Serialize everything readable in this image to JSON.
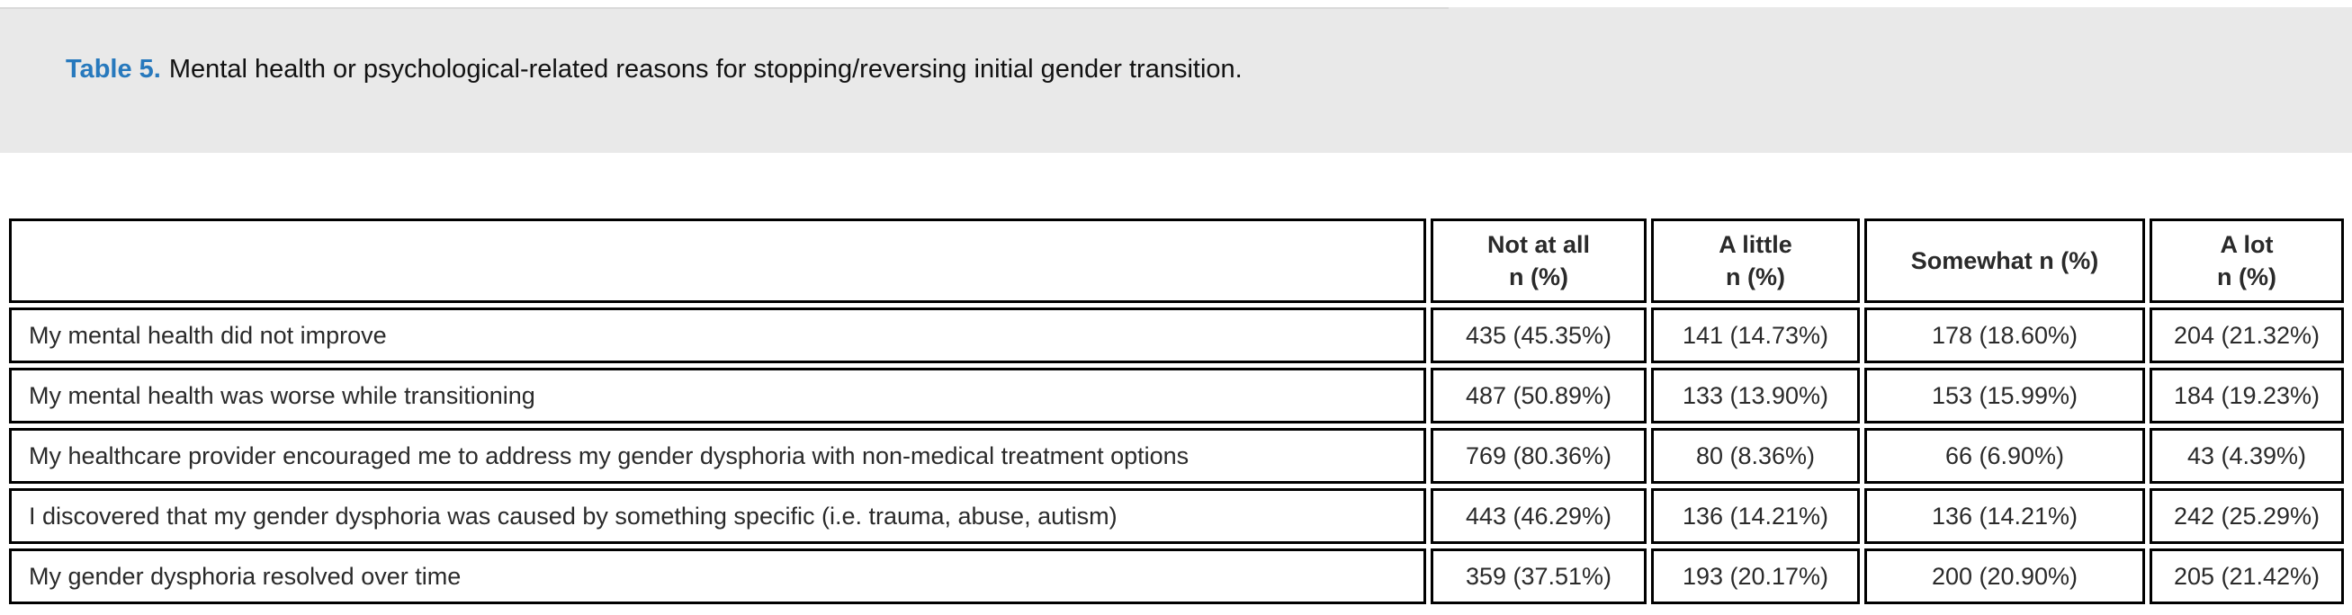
{
  "colors": {
    "caption_bar_background": "#e9e9e9",
    "caption_label_blue": "#2779bd",
    "table_border": "#000000",
    "text": "#2a2a2a"
  },
  "caption_bar": {
    "label": "Table 5.",
    "text": "Mental health or psychological-related reasons for stopping/reversing initial gender transition."
  },
  "table": {
    "columns": [
      {
        "line1": "Not at all",
        "line2": "n (%)"
      },
      {
        "line1": "A little",
        "line2": "n (%)"
      },
      {
        "line1": "Somewhat n (%)",
        "line2": ""
      },
      {
        "line1": "A lot",
        "line2": "n (%)"
      }
    ],
    "rows": [
      {
        "label": "My mental health did not improve",
        "values": [
          "435 (45.35%)",
          "141 (14.73%)",
          "178 (18.60%)",
          "204 (21.32%)"
        ]
      },
      {
        "label": "My mental health was worse while transitioning",
        "values": [
          "487 (50.89%)",
          "133 (13.90%)",
          "153 (15.99%)",
          "184 (19.23%)"
        ]
      },
      {
        "label": "My healthcare provider encouraged me to address my gender dysphoria with non-medical treatment options",
        "values": [
          "769 (80.36%)",
          "80 (8.36%)",
          "66 (6.90%)",
          "43 (4.39%)"
        ]
      },
      {
        "label": "I discovered that my gender dysphoria was caused by something specific (i.e. trauma, abuse, autism)",
        "values": [
          "443 (46.29%)",
          "136 (14.21%)",
          "136 (14.21%)",
          "242 (25.29%)"
        ]
      },
      {
        "label": "My gender dysphoria resolved over time",
        "values": [
          "359 (37.51%)",
          "193 (20.17%)",
          "200 (20.90%)",
          "205 (21.42%)"
        ]
      }
    ]
  },
  "chart_data": {
    "type": "table",
    "title": "Table 5. Mental health or psychological-related reasons for stopping/reversing initial gender transition.",
    "column_headers": [
      "",
      "Not at all n (%)",
      "A little n (%)",
      "Somewhat n (%)",
      "A lot n (%)"
    ],
    "rows": [
      [
        "My mental health did not improve",
        "435 (45.35%)",
        "141 (14.73%)",
        "178 (18.60%)",
        "204 (21.32%)"
      ],
      [
        "My mental health was worse while transitioning",
        "487 (50.89%)",
        "133 (13.90%)",
        "153 (15.99%)",
        "184 (19.23%)"
      ],
      [
        "My healthcare provider encouraged me to address my gender dysphoria with non-medical treatment options",
        "769 (80.36%)",
        "80 (8.36%)",
        "66 (6.90%)",
        "43 (4.39%)"
      ],
      [
        "I discovered that my gender dysphoria was caused by something specific (i.e. trauma, abuse, autism)",
        "443 (46.29%)",
        "136 (14.21%)",
        "136 (14.21%)",
        "242 (25.29%)"
      ],
      [
        "My gender dysphoria resolved over time",
        "359 (37.51%)",
        "193 (20.17%)",
        "200 (20.90%)",
        "205 (21.42%)"
      ]
    ]
  }
}
